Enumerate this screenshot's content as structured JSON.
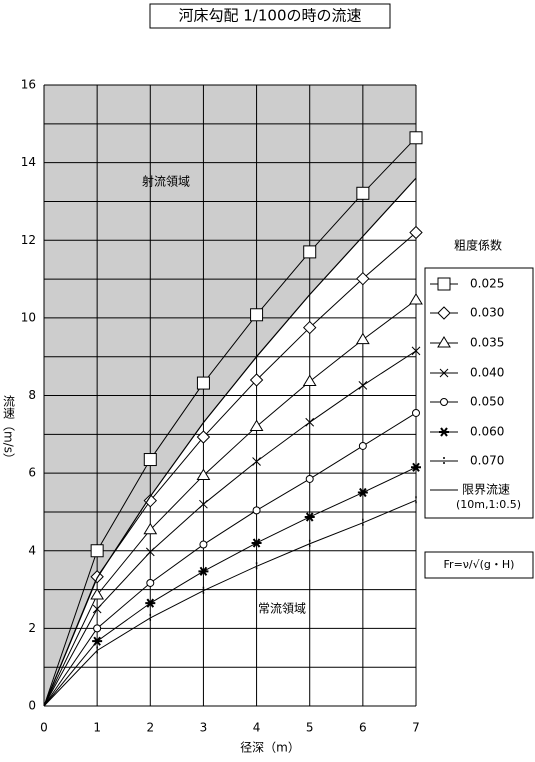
{
  "chart_data": {
    "type": "line",
    "title": "河床勾配 1/100の時の流速",
    "xlabel": "径深（m）",
    "ylabel": "流速（m/s）",
    "legend_title": "粗度係数",
    "formula": "Fr=ν/√(g・H)",
    "region_labels": [
      "射流領域",
      "常流領域"
    ],
    "critical_note": "(10m,1:0.5)",
    "x": [
      0,
      1,
      2,
      3,
      4,
      5,
      6,
      7
    ],
    "xlim": [
      0,
      7
    ],
    "xticks": [
      0,
      1,
      2,
      3,
      4,
      5,
      6,
      7
    ],
    "ylim": [
      0,
      16
    ],
    "yticks": [
      0,
      2,
      4,
      6,
      8,
      10,
      12,
      14,
      16
    ],
    "ygrid": [
      1,
      3,
      5,
      7,
      9,
      11,
      13,
      15
    ],
    "grid": true,
    "series": [
      {
        "name": "0.025",
        "marker": "square",
        "color": "#000000",
        "values": [
          0,
          4.0,
          6.35,
          8.32,
          10.08,
          11.7,
          13.21,
          14.64
        ]
      },
      {
        "name": "0.030",
        "marker": "diamond",
        "color": "#000000",
        "values": [
          0,
          3.33,
          5.29,
          6.93,
          8.4,
          9.75,
          11.01,
          12.2
        ]
      },
      {
        "name": "0.035",
        "marker": "triangle",
        "color": "#000000",
        "values": [
          0,
          2.86,
          4.54,
          5.94,
          7.2,
          8.36,
          9.44,
          10.46
        ]
      },
      {
        "name": "0.040",
        "marker": "x",
        "color": "#000000",
        "values": [
          0,
          2.5,
          3.97,
          5.2,
          6.3,
          7.31,
          8.26,
          9.15
        ]
      },
      {
        "name": "0.050",
        "marker": "circle",
        "color": "#000000",
        "values": [
          0,
          2.0,
          3.17,
          4.16,
          5.04,
          5.85,
          6.7,
          7.55
        ]
      },
      {
        "name": "0.060",
        "marker": "asterisk",
        "color": "#000000",
        "values": [
          0,
          1.67,
          2.65,
          3.47,
          4.2,
          4.87,
          5.5,
          6.15
        ]
      },
      {
        "name": "0.070",
        "marker": "dot",
        "color": "#000000",
        "values": [
          0,
          1.43,
          2.27,
          2.97,
          3.6,
          4.18,
          4.72,
          5.3
        ]
      },
      {
        "name": "限界流速",
        "marker": "none",
        "color": "#000000",
        "values": [
          0,
          3.3,
          5.4,
          7.3,
          9.0,
          10.6,
          12.1,
          13.6
        ]
      }
    ]
  }
}
